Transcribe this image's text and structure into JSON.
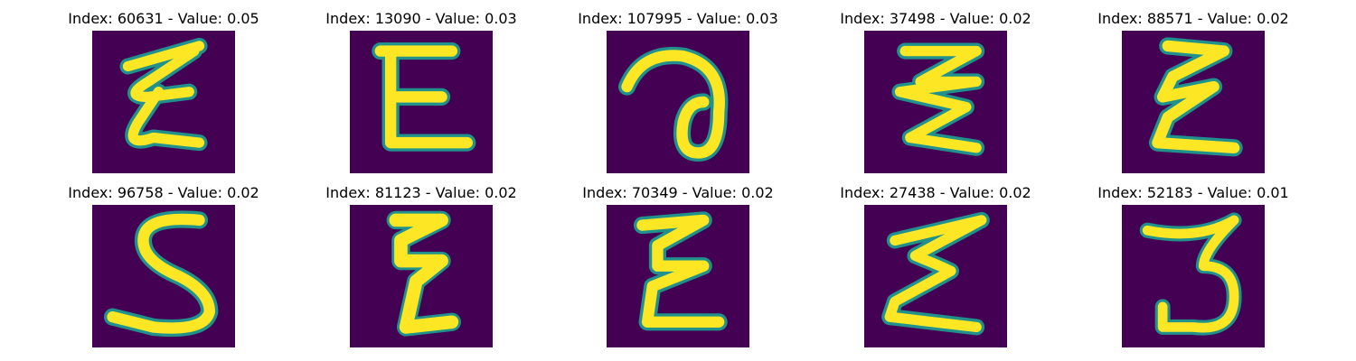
{
  "figure": {
    "colors": {
      "background": "#440154",
      "stroke_edge": "#21918c",
      "stroke_mid": "#5ec962",
      "stroke_core": "#fde725"
    },
    "panels": [
      {
        "title": "Index: 60631 - Value: 0.05",
        "glyph": "E"
      },
      {
        "title": "Index: 13090 - Value: 0.03",
        "glyph": "E"
      },
      {
        "title": "Index: 107995 - Value: 0.03",
        "glyph": "a"
      },
      {
        "title": "Index: 37498 - Value: 0.02",
        "glyph": "E"
      },
      {
        "title": "Index: 88571 - Value: 0.02",
        "glyph": "E"
      },
      {
        "title": "Index: 96758 - Value: 0.02",
        "glyph": "S"
      },
      {
        "title": "Index: 81123 - Value: 0.02",
        "glyph": "E"
      },
      {
        "title": "Index: 70349 - Value: 0.02",
        "glyph": "E"
      },
      {
        "title": "Index: 27438 - Value: 0.02",
        "glyph": "E"
      },
      {
        "title": "Index: 52183 - Value: 0.01",
        "glyph": "3"
      }
    ]
  }
}
